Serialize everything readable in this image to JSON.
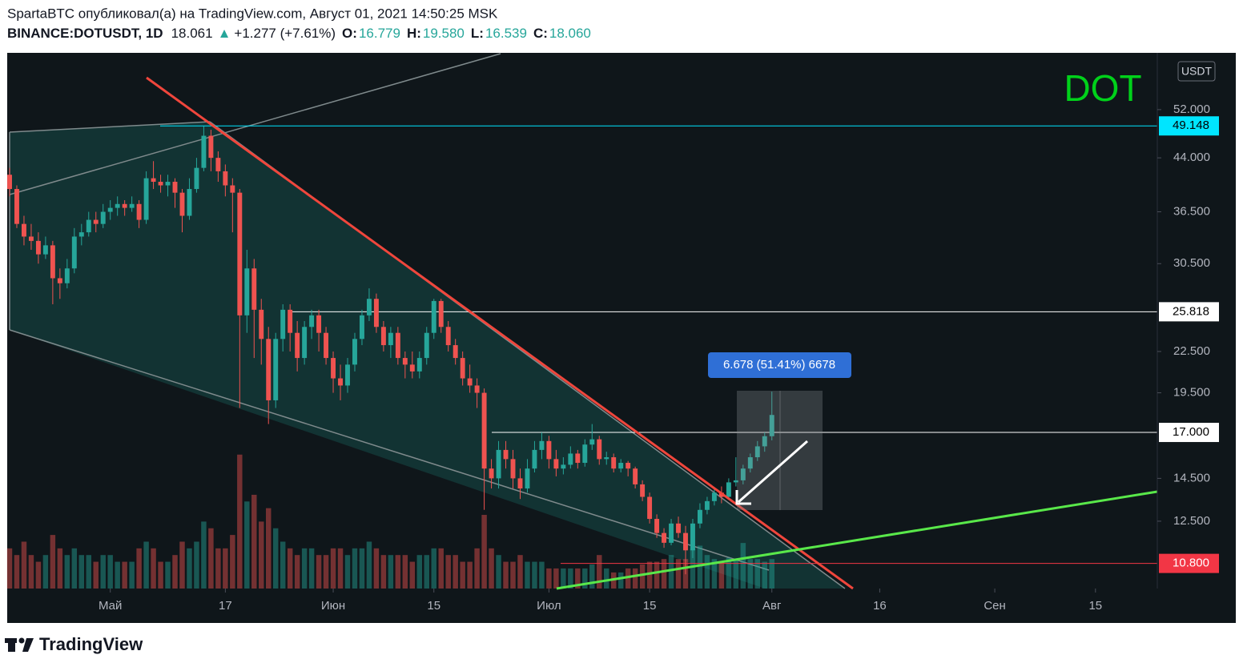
{
  "header": {
    "publisher": "SpartaBTC опубликовал(а) на TradingView.com, Август 01, 2021 14:50:25 MSK",
    "symbol": "BINANCE:DOTUSDT, 1D",
    "last": "18.061",
    "change_arrow": "▲",
    "change": "+1.277 (+7.61%)",
    "ohlc": [
      {
        "label": "O:",
        "value": "16.779"
      },
      {
        "label": "H:",
        "value": "19.580"
      },
      {
        "label": "L:",
        "value": "16.539"
      },
      {
        "label": "C:",
        "value": "18.060"
      }
    ]
  },
  "footer": {
    "brand": "TradingView"
  },
  "chart_data": {
    "type": "candlestick",
    "title": "DOT",
    "currency": "USDT",
    "log_scale": true,
    "up_color": "#26a69a",
    "down_color": "#ef5350",
    "ylim": [
      9.9,
      63.3
    ],
    "yticks": [
      {
        "value": 52,
        "label": "52.000"
      },
      {
        "value": 44,
        "label": "44.000"
      },
      {
        "value": 36.5,
        "label": "36.500"
      },
      {
        "value": 30.5,
        "label": "30.500"
      },
      {
        "value": 22.5,
        "label": "22.500"
      },
      {
        "value": 19.5,
        "label": "19.500"
      },
      {
        "value": 14.5,
        "label": "14.500"
      },
      {
        "value": 12.5,
        "label": "12.500"
      }
    ],
    "xlim": [
      0,
      159.6
    ],
    "xticks": [
      {
        "value": 14,
        "label": "Май"
      },
      {
        "value": 30,
        "label": "17"
      },
      {
        "value": 45,
        "label": "Июн"
      },
      {
        "value": 59,
        "label": "15"
      },
      {
        "value": 75,
        "label": "Июл"
      },
      {
        "value": 89,
        "label": "15"
      },
      {
        "value": 106,
        "label": "Авг"
      },
      {
        "value": 121,
        "label": "16"
      },
      {
        "value": 137,
        "label": "Сен"
      },
      {
        "value": 151,
        "label": "15"
      }
    ],
    "levels": [
      {
        "value": 49.148,
        "color": "#00e5ff",
        "text_color": "#000000"
      },
      {
        "value": 25.818,
        "color": "#ffffff",
        "text_color": "#000000"
      },
      {
        "value": 17,
        "label": "17.000",
        "color": "#ffffff",
        "text_color": "#000000"
      },
      {
        "value": 10.8,
        "label": "10.800",
        "color": "#f23645",
        "text_color": "#ffffff"
      }
    ],
    "measure": {
      "label": "6.678 (51.41%) 6678"
    },
    "candles": [
      [
        41.5,
        42.5,
        38.5,
        39.5
      ],
      [
        39.5,
        40,
        34.5,
        35
      ],
      [
        35,
        36,
        32.5,
        33.5
      ],
      [
        33.5,
        35,
        32,
        33
      ],
      [
        33,
        34,
        30.5,
        31.5
      ],
      [
        31.5,
        33.5,
        31,
        32.5
      ],
      [
        32.5,
        33,
        26.5,
        29
      ],
      [
        29,
        30,
        27,
        28.5
      ],
      [
        28.5,
        31,
        28,
        30
      ],
      [
        30,
        34.5,
        29.5,
        33.5
      ],
      [
        33.5,
        35,
        32.5,
        34
      ],
      [
        34,
        36.5,
        33.5,
        35.5
      ],
      [
        35.5,
        36.5,
        34,
        35
      ],
      [
        35,
        37.5,
        34.5,
        36.5
      ],
      [
        36.5,
        38,
        35.5,
        37
      ],
      [
        37,
        38.5,
        36,
        37.5
      ],
      [
        37.5,
        38,
        36,
        37
      ],
      [
        37,
        38.5,
        36.5,
        37.5
      ],
      [
        37.5,
        38,
        34.5,
        35.5
      ],
      [
        35.5,
        42,
        35,
        41
      ],
      [
        41,
        43.5,
        39.5,
        40.5
      ],
      [
        40.5,
        41.5,
        39,
        40
      ],
      [
        40,
        41.5,
        38.5,
        40.5
      ],
      [
        40.5,
        41,
        37,
        39
      ],
      [
        39,
        39.5,
        34,
        36
      ],
      [
        36,
        41,
        35.5,
        39.5
      ],
      [
        39.5,
        44,
        39,
        42.5
      ],
      [
        42.5,
        49.1,
        42,
        47.5
      ],
      [
        47.5,
        48.5,
        42,
        44
      ],
      [
        44,
        45,
        40.5,
        42
      ],
      [
        42,
        43,
        38.5,
        40
      ],
      [
        40,
        41,
        34,
        39
      ],
      [
        39,
        39.5,
        18.5,
        25.5
      ],
      [
        25.5,
        32,
        24,
        30
      ],
      [
        30,
        31,
        22,
        26
      ],
      [
        26,
        27,
        21.5,
        23.5
      ],
      [
        23.5,
        24.5,
        17.5,
        19
      ],
      [
        19,
        24,
        18.5,
        23.5
      ],
      [
        23.5,
        26.5,
        22.5,
        26
      ],
      [
        26,
        26.5,
        22.5,
        24
      ],
      [
        24,
        25,
        21,
        22
      ],
      [
        22,
        25,
        21.5,
        24.5
      ],
      [
        24.5,
        26,
        23.5,
        25.5
      ],
      [
        25.5,
        26,
        22.5,
        24
      ],
      [
        24,
        24.5,
        21.5,
        22
      ],
      [
        22,
        22.5,
        19.5,
        20.5
      ],
      [
        20.5,
        21.5,
        19,
        20
      ],
      [
        20,
        22,
        19.5,
        21.5
      ],
      [
        21.5,
        24,
        21,
        23.5
      ],
      [
        23.5,
        26,
        23,
        25.5
      ],
      [
        25.5,
        28,
        25,
        27
      ],
      [
        27,
        27.5,
        24,
        24.5
      ],
      [
        24.5,
        25,
        22.5,
        23
      ],
      [
        23,
        24.5,
        22,
        24
      ],
      [
        24,
        24.5,
        21.5,
        22
      ],
      [
        22,
        22.5,
        20.5,
        21.5
      ],
      [
        21.5,
        22.5,
        20.5,
        21
      ],
      [
        21,
        22.5,
        20.5,
        22
      ],
      [
        22,
        24.5,
        21.5,
        24
      ],
      [
        24,
        27,
        23.5,
        26.8
      ],
      [
        26.8,
        27,
        24,
        24.5
      ],
      [
        24.5,
        25,
        22.5,
        23
      ],
      [
        23,
        23.5,
        21.5,
        22
      ],
      [
        22,
        22.5,
        20,
        20.5
      ],
      [
        20.5,
        21.5,
        19.5,
        20
      ],
      [
        20,
        20.5,
        18.5,
        19.5
      ],
      [
        19.5,
        19.8,
        13,
        15
      ],
      [
        15,
        15.5,
        14,
        14.5
      ],
      [
        14.5,
        16.5,
        14,
        16
      ],
      [
        16,
        16.5,
        15,
        15.5
      ],
      [
        15.5,
        16,
        14,
        14.5
      ],
      [
        14.5,
        15,
        13.5,
        14
      ],
      [
        14,
        15.5,
        13.8,
        15
      ],
      [
        15,
        16.5,
        14.8,
        16
      ],
      [
        16,
        17,
        15.5,
        16.5
      ],
      [
        16.5,
        16.8,
        15,
        15.5
      ],
      [
        15.5,
        16,
        14.6,
        15
      ],
      [
        15,
        15.6,
        14.7,
        15.2
      ],
      [
        15.2,
        16.2,
        15,
        15.8
      ],
      [
        15.8,
        16,
        15,
        15.3
      ],
      [
        15.3,
        16.6,
        15.1,
        16.3
      ],
      [
        16.3,
        17.5,
        16,
        16.6
      ],
      [
        16.6,
        16.8,
        15.2,
        15.5
      ],
      [
        15.5,
        15.9,
        15.2,
        15.6
      ],
      [
        15.6,
        15.8,
        14.8,
        15
      ],
      [
        15,
        15.5,
        14.8,
        15.3
      ],
      [
        15.3,
        15.4,
        14.6,
        15
      ],
      [
        15,
        15.1,
        14,
        14.2
      ],
      [
        14.2,
        14.4,
        13.4,
        13.6
      ],
      [
        13.6,
        13.8,
        12.4,
        12.6
      ],
      [
        12.6,
        12.8,
        11.8,
        12
      ],
      [
        12,
        12.2,
        11.4,
        11.6
      ],
      [
        11.6,
        12.6,
        11.5,
        12.4
      ],
      [
        12.4,
        12.7,
        11.8,
        12
      ],
      [
        12,
        12.3,
        10.4,
        11.3
      ],
      [
        11.3,
        12.6,
        11,
        12.4
      ],
      [
        12.4,
        13.3,
        12.2,
        13
      ],
      [
        13,
        13.6,
        12.8,
        13.4
      ],
      [
        13.4,
        14,
        13.2,
        13.8
      ],
      [
        13.8,
        14.1,
        13.3,
        13.6
      ],
      [
        13.6,
        14.5,
        13.5,
        14.3
      ],
      [
        14.3,
        15.6,
        14.1,
        14.4
      ],
      [
        14.4,
        15.2,
        14.2,
        15
      ],
      [
        15,
        15.8,
        14.8,
        15.6
      ],
      [
        15.6,
        16.5,
        15.4,
        16.2
      ],
      [
        16.2,
        17,
        15.9,
        16.779
      ],
      [
        16.779,
        19.58,
        16.539,
        18.06
      ]
    ],
    "volume_ylim": [
      0,
      40
    ],
    "volume": [
      3,
      2.5,
      3.5,
      2.5,
      2,
      2.5,
      4,
      3,
      2.5,
      3,
      2.5,
      2.5,
      2,
      2.5,
      2.5,
      2,
      2,
      2,
      3,
      3.5,
      3,
      2,
      2,
      2.5,
      3.5,
      3,
      3.5,
      5,
      4.5,
      3,
      3,
      4,
      10,
      6.5,
      7,
      5,
      6,
      4.5,
      3.5,
      3,
      2.5,
      3,
      3,
      2.5,
      2.5,
      3,
      3,
      2.5,
      3,
      3,
      3.5,
      3,
      2.5,
      2.5,
      2.5,
      2.5,
      2,
      2.5,
      2.5,
      3,
      3,
      2.5,
      2.5,
      2,
      2,
      3,
      5.5,
      3,
      2.5,
      2,
      2,
      2.5,
      2,
      2,
      2,
      1.5,
      1.5,
      1.5,
      1.5,
      1.5,
      1.5,
      1.8,
      2.5,
      1.5,
      1.2,
      1.2,
      1.5,
      1.5,
      1.8,
      2,
      2,
      2.2,
      2.5,
      2.2,
      2.2,
      3,
      3.2,
      2.5,
      2.2,
      2,
      2.3,
      2.2,
      3.4,
      2.2,
      2.2,
      2,
      2.2
    ]
  }
}
